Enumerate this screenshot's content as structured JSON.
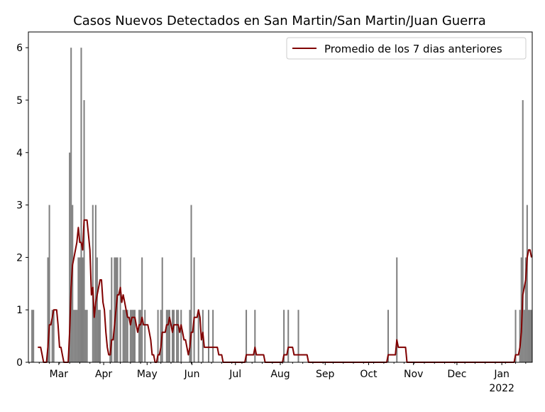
{
  "chart_data": {
    "type": "bar",
    "title": "Casos Nuevos Detectados en San Martin/San Martin/Juan Guerra",
    "xlabel": "",
    "ylabel": "",
    "start_date": "2021-02-08",
    "num_days": 348,
    "ylim": [
      0,
      6.3
    ],
    "yticks": [
      0,
      1,
      2,
      3,
      4,
      5,
      6
    ],
    "xticks": [
      {
        "day": 21,
        "label": "Mar"
      },
      {
        "day": 52,
        "label": "Apr"
      },
      {
        "day": 82,
        "label": "May"
      },
      {
        "day": 113,
        "label": "Jun"
      },
      {
        "day": 143,
        "label": "Jul"
      },
      {
        "day": 174,
        "label": "Aug"
      },
      {
        "day": 205,
        "label": "Sep"
      },
      {
        "day": 235,
        "label": "Oct"
      },
      {
        "day": 266,
        "label": "Nov"
      },
      {
        "day": 296,
        "label": "Dec"
      },
      {
        "day": 327,
        "label": "Jan",
        "sublabel": "2022"
      }
    ],
    "bar_color": "#808080",
    "line_color": "#800000",
    "legend": {
      "label": "Promedio de los 7 dias anteriores",
      "position": "top-right"
    },
    "daily_cases_nonzero": [
      [
        2,
        1
      ],
      [
        3,
        1
      ],
      [
        13,
        2
      ],
      [
        14,
        3
      ],
      [
        16,
        1
      ],
      [
        17,
        1
      ],
      [
        28,
        4
      ],
      [
        29,
        6
      ],
      [
        30,
        3
      ],
      [
        31,
        1
      ],
      [
        32,
        1
      ],
      [
        33,
        1
      ],
      [
        34,
        2
      ],
      [
        35,
        2
      ],
      [
        36,
        6
      ],
      [
        37,
        2
      ],
      [
        38,
        5
      ],
      [
        39,
        1
      ],
      [
        40,
        1
      ],
      [
        44,
        3
      ],
      [
        45,
        1
      ],
      [
        46,
        3
      ],
      [
        47,
        2
      ],
      [
        48,
        1
      ],
      [
        49,
        1
      ],
      [
        56,
        1
      ],
      [
        57,
        2
      ],
      [
        59,
        2
      ],
      [
        60,
        2
      ],
      [
        61,
        2
      ],
      [
        63,
        2
      ],
      [
        65,
        1
      ],
      [
        66,
        1
      ],
      [
        67,
        1
      ],
      [
        68,
        1
      ],
      [
        70,
        1
      ],
      [
        71,
        1
      ],
      [
        72,
        1
      ],
      [
        73,
        1
      ],
      [
        76,
        1
      ],
      [
        77,
        1
      ],
      [
        78,
        2
      ],
      [
        80,
        1
      ],
      [
        89,
        1
      ],
      [
        91,
        1
      ],
      [
        92,
        2
      ],
      [
        95,
        1
      ],
      [
        96,
        1
      ],
      [
        97,
        1
      ],
      [
        99,
        1
      ],
      [
        100,
        1
      ],
      [
        102,
        1
      ],
      [
        103,
        1
      ],
      [
        105,
        1
      ],
      [
        111,
        1
      ],
      [
        112,
        3
      ],
      [
        114,
        2
      ],
      [
        117,
        1
      ],
      [
        120,
        1
      ],
      [
        124,
        1
      ],
      [
        127,
        1
      ],
      [
        150,
        1
      ],
      [
        156,
        1
      ],
      [
        176,
        1
      ],
      [
        179,
        1
      ],
      [
        186,
        1
      ],
      [
        248,
        1
      ],
      [
        254,
        2
      ],
      [
        336,
        1
      ],
      [
        339,
        1
      ],
      [
        340,
        2
      ],
      [
        341,
        5
      ],
      [
        342,
        1
      ],
      [
        343,
        2
      ],
      [
        344,
        3
      ],
      [
        345,
        1
      ],
      [
        346,
        1
      ],
      [
        347,
        1
      ]
    ]
  }
}
